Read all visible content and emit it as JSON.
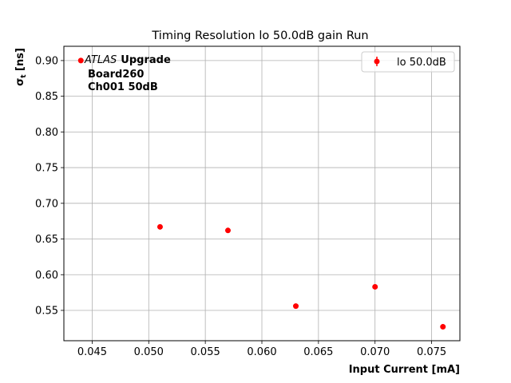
{
  "chart_data": {
    "type": "scatter",
    "title": "Timing Resolution lo 50.0dB gain Run",
    "xlabel": "Input Current [mA]",
    "ylabel_main": "σ",
    "ylabel_sub": "t",
    "ylabel_unit": " [ns]",
    "xlim": [
      0.0425,
      0.0775
    ],
    "ylim": [
      0.5075,
      0.92
    ],
    "xticks": [
      0.045,
      0.05,
      0.055,
      0.06,
      0.065,
      0.07,
      0.075
    ],
    "xtick_labels": [
      "0.045",
      "0.050",
      "0.055",
      "0.060",
      "0.065",
      "0.070",
      "0.075"
    ],
    "yticks": [
      0.55,
      0.6,
      0.65,
      0.7,
      0.75,
      0.8,
      0.85,
      0.9
    ],
    "ytick_labels": [
      "0.55",
      "0.60",
      "0.65",
      "0.70",
      "0.75",
      "0.80",
      "0.85",
      "0.90"
    ],
    "grid": true,
    "legend_position": "top-right",
    "series": [
      {
        "name": "lo 50.0dB",
        "color": "#ff0000",
        "marker": "circle",
        "x": [
          0.044,
          0.051,
          0.057,
          0.063,
          0.07,
          0.076
        ],
        "y": [
          0.9,
          0.667,
          0.662,
          0.556,
          0.583,
          0.527
        ]
      }
    ],
    "annotation": {
      "italic_part": "ATLAS",
      "bold_part": "Upgrade",
      "line2": "Board260",
      "line3": "Ch001 50dB"
    }
  }
}
